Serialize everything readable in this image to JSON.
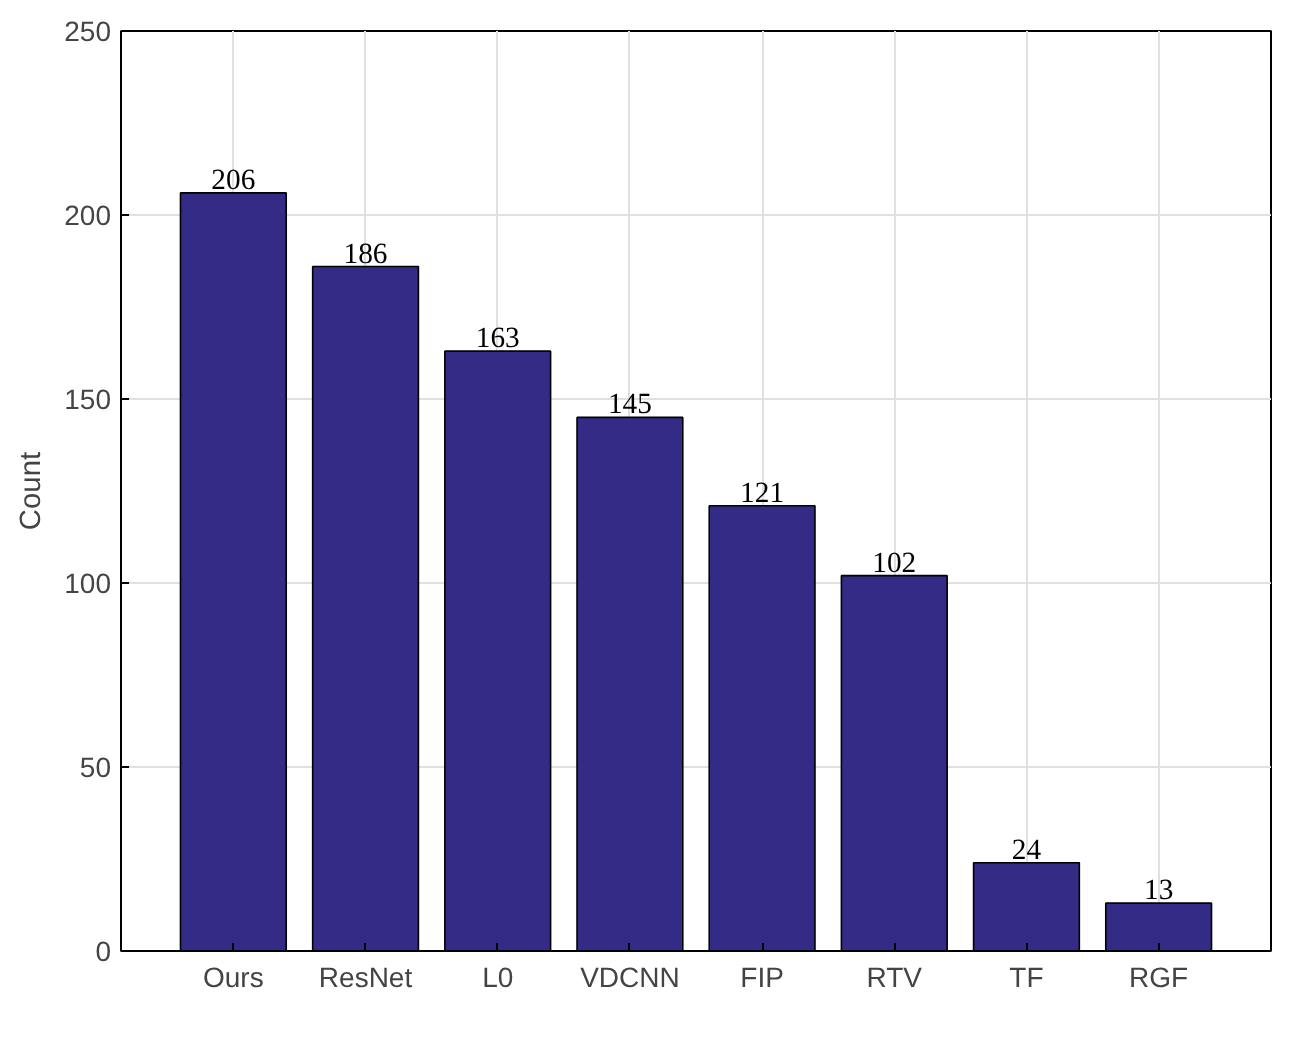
{
  "chart_data": {
    "type": "bar",
    "ylabel": "Count",
    "categories": [
      "Ours",
      "ResNet",
      "L0",
      "VDCNN",
      "FIP",
      "RTV",
      "TF",
      "RGF"
    ],
    "values": [
      206,
      186,
      163,
      145,
      121,
      102,
      24,
      13
    ],
    "color": "#332b86",
    "ylim": [
      0,
      250
    ],
    "yticks": [
      0,
      50,
      100,
      150,
      200,
      250
    ],
    "grid": true,
    "data_labels": true
  }
}
